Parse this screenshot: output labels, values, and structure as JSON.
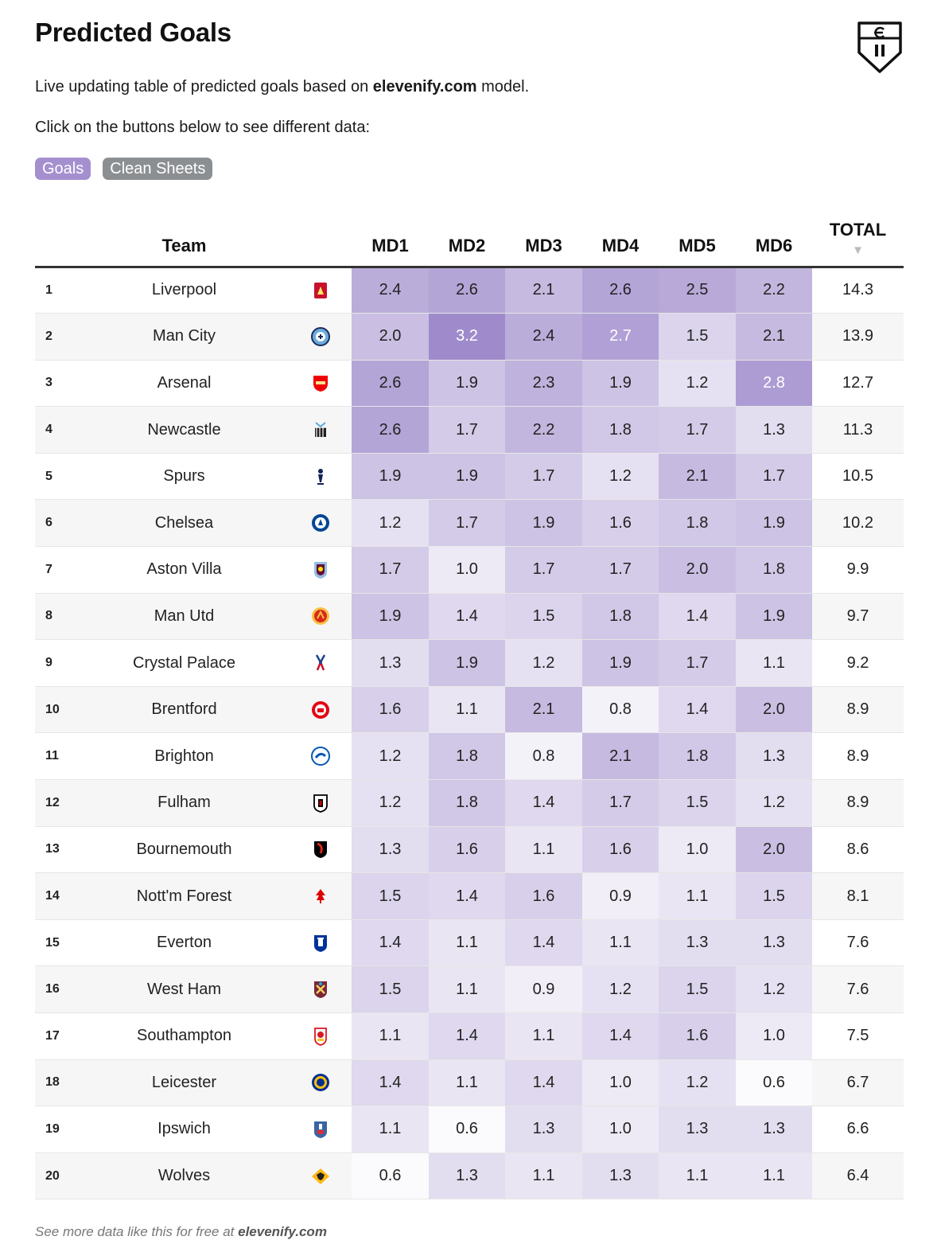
{
  "header": {
    "title": "Predicted Goals",
    "desc_prefix": "Live updating table of predicted goals based on ",
    "desc_brand": "elevenify.com",
    "desc_suffix": " model.",
    "click_text": "Click on the buttons below to see different data:"
  },
  "buttons": {
    "goals": "Goals",
    "clean_sheets": "Clean Sheets"
  },
  "columns": {
    "team": "Team",
    "md": [
      "MD1",
      "MD2",
      "MD3",
      "MD4",
      "MD5",
      "MD6"
    ],
    "total": "TOTAL",
    "sort_arrow": "▼"
  },
  "colors": {
    "heat_max": "#9f8bcb",
    "heat_min": "#ffffff",
    "button_goals": "#a48fcf",
    "button_clean_sheets": "#8c8f92"
  },
  "rows": [
    {
      "rank": "1",
      "team": "Liverpool",
      "badge": "liverpool-badge-icon",
      "md": [
        "2.4",
        "2.6",
        "2.1",
        "2.6",
        "2.5",
        "2.2"
      ],
      "total": "14.3"
    },
    {
      "rank": "2",
      "team": "Man City",
      "badge": "man-city-badge-icon",
      "md": [
        "2.0",
        "3.2",
        "2.4",
        "2.7",
        "1.5",
        "2.1"
      ],
      "total": "13.9"
    },
    {
      "rank": "3",
      "team": "Arsenal",
      "badge": "arsenal-badge-icon",
      "md": [
        "2.6",
        "1.9",
        "2.3",
        "1.9",
        "1.2",
        "2.8"
      ],
      "total": "12.7"
    },
    {
      "rank": "4",
      "team": "Newcastle",
      "badge": "newcastle-badge-icon",
      "md": [
        "2.6",
        "1.7",
        "2.2",
        "1.8",
        "1.7",
        "1.3"
      ],
      "total": "11.3"
    },
    {
      "rank": "5",
      "team": "Spurs",
      "badge": "spurs-badge-icon",
      "md": [
        "1.9",
        "1.9",
        "1.7",
        "1.2",
        "2.1",
        "1.7"
      ],
      "total": "10.5"
    },
    {
      "rank": "6",
      "team": "Chelsea",
      "badge": "chelsea-badge-icon",
      "md": [
        "1.2",
        "1.7",
        "1.9",
        "1.6",
        "1.8",
        "1.9"
      ],
      "total": "10.2"
    },
    {
      "rank": "7",
      "team": "Aston Villa",
      "badge": "aston-villa-badge-icon",
      "md": [
        "1.7",
        "1.0",
        "1.7",
        "1.7",
        "2.0",
        "1.8"
      ],
      "total": "9.9"
    },
    {
      "rank": "8",
      "team": "Man Utd",
      "badge": "man-utd-badge-icon",
      "md": [
        "1.9",
        "1.4",
        "1.5",
        "1.8",
        "1.4",
        "1.9"
      ],
      "total": "9.7"
    },
    {
      "rank": "9",
      "team": "Crystal Palace",
      "badge": "crystal-palace-badge-icon",
      "md": [
        "1.3",
        "1.9",
        "1.2",
        "1.9",
        "1.7",
        "1.1"
      ],
      "total": "9.2"
    },
    {
      "rank": "10",
      "team": "Brentford",
      "badge": "brentford-badge-icon",
      "md": [
        "1.6",
        "1.1",
        "2.1",
        "0.8",
        "1.4",
        "2.0"
      ],
      "total": "8.9"
    },
    {
      "rank": "11",
      "team": "Brighton",
      "badge": "brighton-badge-icon",
      "md": [
        "1.2",
        "1.8",
        "0.8",
        "2.1",
        "1.8",
        "1.3"
      ],
      "total": "8.9"
    },
    {
      "rank": "12",
      "team": "Fulham",
      "badge": "fulham-badge-icon",
      "md": [
        "1.2",
        "1.8",
        "1.4",
        "1.7",
        "1.5",
        "1.2"
      ],
      "total": "8.9"
    },
    {
      "rank": "13",
      "team": "Bournemouth",
      "badge": "bournemouth-badge-icon",
      "md": [
        "1.3",
        "1.6",
        "1.1",
        "1.6",
        "1.0",
        "2.0"
      ],
      "total": "8.6"
    },
    {
      "rank": "14",
      "team": "Nott'm Forest",
      "badge": "nottm-forest-badge-icon",
      "md": [
        "1.5",
        "1.4",
        "1.6",
        "0.9",
        "1.1",
        "1.5"
      ],
      "total": "8.1"
    },
    {
      "rank": "15",
      "team": "Everton",
      "badge": "everton-badge-icon",
      "md": [
        "1.4",
        "1.1",
        "1.4",
        "1.1",
        "1.3",
        "1.3"
      ],
      "total": "7.6"
    },
    {
      "rank": "16",
      "team": "West Ham",
      "badge": "west-ham-badge-icon",
      "md": [
        "1.5",
        "1.1",
        "0.9",
        "1.2",
        "1.5",
        "1.2"
      ],
      "total": "7.6"
    },
    {
      "rank": "17",
      "team": "Southampton",
      "badge": "southampton-badge-icon",
      "md": [
        "1.1",
        "1.4",
        "1.1",
        "1.4",
        "1.6",
        "1.0"
      ],
      "total": "7.5"
    },
    {
      "rank": "18",
      "team": "Leicester",
      "badge": "leicester-badge-icon",
      "md": [
        "1.4",
        "1.1",
        "1.4",
        "1.0",
        "1.2",
        "0.6"
      ],
      "total": "6.7"
    },
    {
      "rank": "19",
      "team": "Ipswich",
      "badge": "ipswich-badge-icon",
      "md": [
        "1.1",
        "0.6",
        "1.3",
        "1.0",
        "1.3",
        "1.3"
      ],
      "total": "6.6"
    },
    {
      "rank": "20",
      "team": "Wolves",
      "badge": "wolves-badge-icon",
      "md": [
        "0.6",
        "1.3",
        "1.1",
        "1.3",
        "1.1",
        "1.1"
      ],
      "total": "6.4"
    }
  ],
  "footer": {
    "prefix": "See more data like this for free at ",
    "brand": "elevenify.com"
  }
}
